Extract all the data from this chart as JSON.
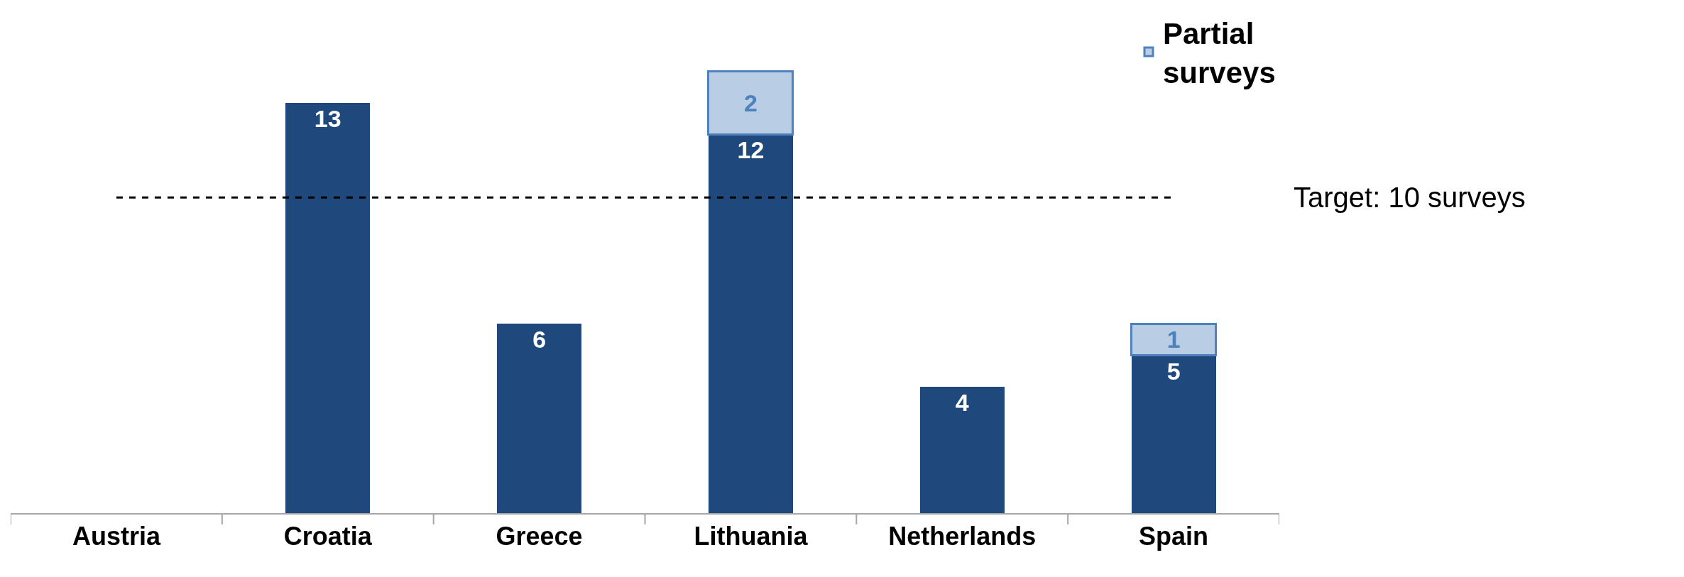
{
  "chart_data": {
    "type": "bar",
    "stacked": true,
    "categories": [
      "Austria",
      "Croatia",
      "Greece",
      "Lithuania",
      "Netherlands",
      "Spain"
    ],
    "series": [
      {
        "color": "#1f497d",
        "values": [
          null,
          13,
          6,
          12,
          4,
          5
        ]
      },
      {
        "name": "Partial surveys",
        "color": "#b9cde5",
        "values": [
          null,
          null,
          null,
          2,
          null,
          1
        ]
      }
    ],
    "data_labels": true,
    "ref_lines": [
      {
        "axis": "y",
        "value": 10,
        "label": "Target: 10 surveys",
        "color": "#000000",
        "line_style": "dashed"
      }
    ],
    "legend": "top right",
    "tick_labels": "x"
  }
}
